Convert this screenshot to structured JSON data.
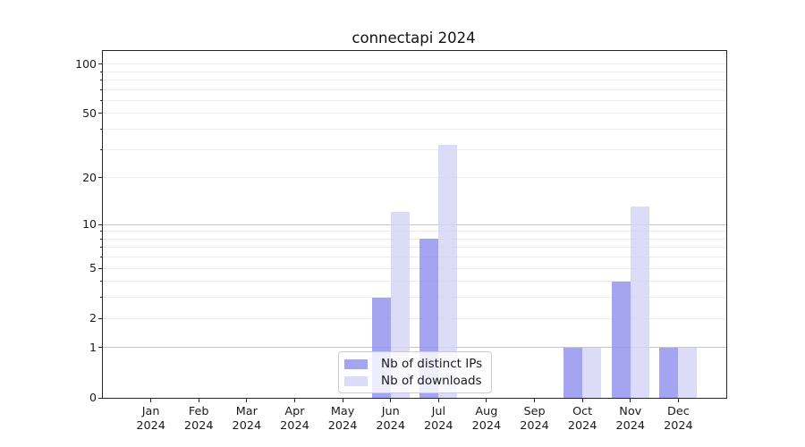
{
  "title": "connectapi 2024",
  "chart_data": {
    "type": "bar",
    "title": "connectapi 2024",
    "categories": [
      "Jan",
      "Feb",
      "Mar",
      "Apr",
      "May",
      "Jun",
      "Jul",
      "Aug",
      "Sep",
      "Oct",
      "Nov",
      "Dec"
    ],
    "year_label": "2024",
    "series": [
      {
        "key": "distinct-ips",
        "name": "Nb of distinct IPs",
        "color": "rgba(141,141,238,0.8)",
        "values": [
          0,
          0,
          0,
          0,
          0,
          3,
          8,
          0,
          0,
          1,
          4,
          1
        ]
      },
      {
        "key": "downloads",
        "name": "Nb of downloads",
        "color": "rgba(211,211,246,0.8)",
        "values": [
          0,
          0,
          0,
          0,
          0,
          12,
          32,
          0,
          0,
          1,
          13,
          1
        ]
      }
    ],
    "xlabel": "",
    "ylabel": "",
    "yscale": "log1p",
    "ylim": [
      0,
      120
    ],
    "yticks": [
      0,
      1,
      2,
      5,
      10,
      20,
      50,
      100
    ],
    "yticks_minor": [
      3,
      4,
      6,
      7,
      8,
      9,
      30,
      40,
      60,
      70,
      80,
      90
    ],
    "grid_emphasis_values": [
      1,
      10
    ],
    "grid": true,
    "legend_position": "lower center",
    "colors": {
      "grid_major": "#c6c6c6",
      "grid_minor": "#ebebeb",
      "spine": "#262626",
      "text": "#1a1a1a",
      "background": "#ffffff"
    }
  }
}
